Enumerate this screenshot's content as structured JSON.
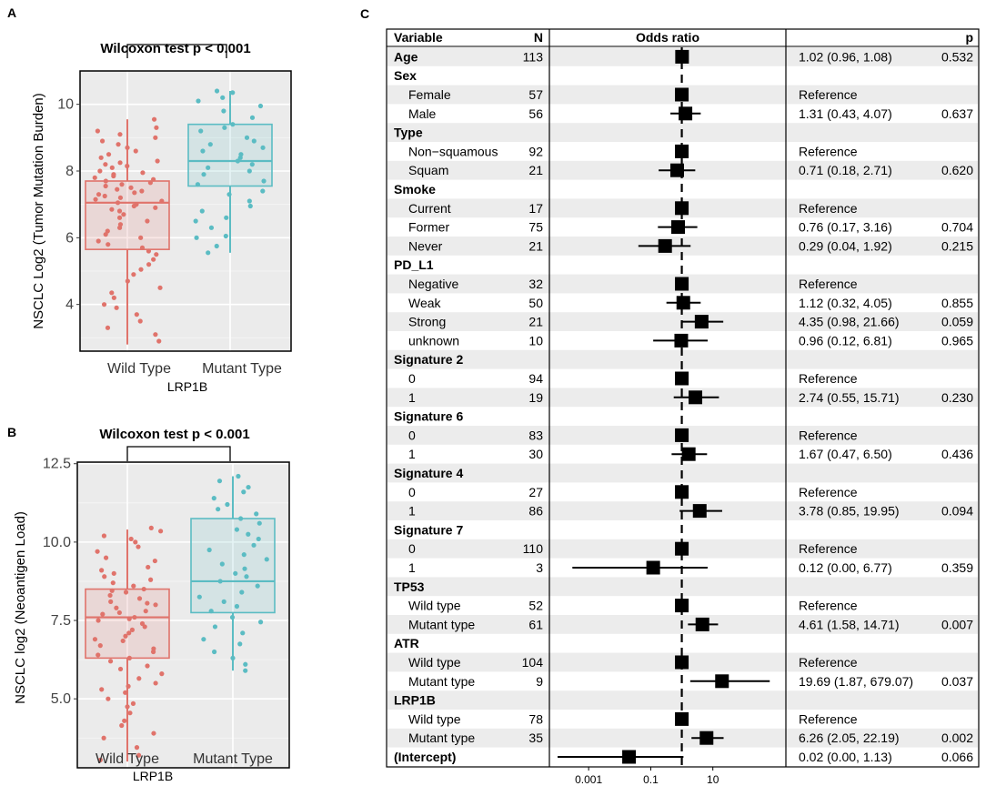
{
  "colors": {
    "wild": "#e0736b",
    "mutant": "#5bbcc3",
    "panel": "#ebebeb",
    "grid": "#ffffff",
    "stripe": "#ececec"
  },
  "panels": {
    "A": {
      "letter": "A",
      "test_label": "Wilcoxon test  p < 0.001",
      "ylabel": "NSCLC  Log2 (Tumor Mutation Burden)",
      "xlabel": "LRP1B",
      "categories": [
        "Wild Type",
        "Mutant Type"
      ],
      "y_ticks": [
        "4",
        "6",
        "8",
        "10"
      ]
    },
    "B": {
      "letter": "B",
      "test_label": "Wilcoxon test  p < 0.001",
      "ylabel": "NSCLC log2 (Neoantigen Load)",
      "xlabel": "LRP1B",
      "categories": [
        "Wild Type",
        "Mutant Type"
      ],
      "y_ticks": [
        "5.0",
        "7.5",
        "10.0",
        "12.5"
      ]
    },
    "C": {
      "letter": "C",
      "headers": {
        "variable": "Variable",
        "n": "N",
        "or": "Odds ratio",
        "p": "p"
      },
      "x_ticks": [
        "0.001",
        "0.1",
        "10"
      ]
    }
  },
  "chart_data": [
    {
      "type": "box",
      "title": "Wilcoxon test  p < 0.001",
      "xlabel": "LRP1B",
      "ylabel": "NSCLC  Log2 (Tumor Mutation Burden)",
      "ylim": [
        2.6,
        11.0
      ],
      "categories": [
        "Wild Type",
        "Mutant Type"
      ],
      "boxes": [
        {
          "name": "Wild Type",
          "min": 2.8,
          "q1": 5.65,
          "median": 7.05,
          "q3": 7.7,
          "max": 9.55
        },
        {
          "name": "Mutant Type",
          "min": 5.55,
          "q1": 7.55,
          "median": 8.3,
          "q3": 9.4,
          "max": 10.4
        }
      ],
      "points": [
        {
          "group": 0,
          "values": [
            9.55,
            9.3,
            9.2,
            9.1,
            9.0,
            8.9,
            8.8,
            8.7,
            8.6,
            8.5,
            8.4,
            8.3,
            8.25,
            8.2,
            8.15,
            8.1,
            8.0,
            7.95,
            7.9,
            7.85,
            7.8,
            7.75,
            7.7,
            7.65,
            7.6,
            7.55,
            7.5,
            7.45,
            7.4,
            7.35,
            7.3,
            7.25,
            7.2,
            7.15,
            7.1,
            7.05,
            7.0,
            6.95,
            6.9,
            6.85,
            6.8,
            6.7,
            6.6,
            6.5,
            6.4,
            6.3,
            6.2,
            6.1,
            6.0,
            5.9,
            5.8,
            5.7,
            5.6,
            5.5,
            5.35,
            5.2,
            5.05,
            4.9,
            4.7,
            4.5,
            4.35,
            4.2,
            4.0,
            3.9,
            3.7,
            3.5,
            3.3,
            3.1,
            2.9
          ]
        },
        {
          "group": 1,
          "values": [
            10.4,
            10.35,
            10.2,
            10.1,
            9.95,
            9.8,
            9.6,
            9.4,
            9.3,
            9.2,
            9.0,
            8.9,
            8.8,
            8.7,
            8.6,
            8.5,
            8.4,
            8.3,
            8.2,
            8.1,
            8.0,
            7.9,
            7.7,
            7.6,
            7.4,
            7.3,
            7.1,
            6.95,
            6.8,
            6.6,
            6.5,
            6.3,
            6.05,
            6.0,
            5.75,
            5.55
          ]
        }
      ]
    },
    {
      "type": "box",
      "title": "Wilcoxon test  p < 0.001",
      "xlabel": "LRP1B",
      "ylabel": "NSCLC log2 (Neoantigen Load)",
      "ylim": [
        2.8,
        12.55
      ],
      "categories": [
        "Wild Type",
        "Mutant Type"
      ],
      "boxes": [
        {
          "name": "Wild Type",
          "min": 3.0,
          "q1": 6.3,
          "median": 7.6,
          "q3": 8.5,
          "max": 10.4
        },
        {
          "name": "Mutant Type",
          "min": 5.9,
          "q1": 7.75,
          "median": 8.75,
          "q3": 10.75,
          "max": 12.1
        }
      ],
      "points": [
        {
          "group": 0,
          "values": [
            10.45,
            10.35,
            10.2,
            10.1,
            10.0,
            9.85,
            9.7,
            9.5,
            9.4,
            9.2,
            9.1,
            9.0,
            8.9,
            8.8,
            8.7,
            8.6,
            8.5,
            8.45,
            8.4,
            8.3,
            8.2,
            8.1,
            8.05,
            8.0,
            7.9,
            7.8,
            7.75,
            7.7,
            7.6,
            7.55,
            7.5,
            7.4,
            7.3,
            7.2,
            7.1,
            7.0,
            6.9,
            6.85,
            6.7,
            6.6,
            6.5,
            6.4,
            6.3,
            6.2,
            6.05,
            5.95,
            5.8,
            5.65,
            5.5,
            5.4,
            5.3,
            5.2,
            5.0,
            4.85,
            4.75,
            4.55,
            4.3,
            4.15,
            3.9,
            3.75,
            3.45,
            3.2,
            3.05
          ]
        },
        {
          "group": 1,
          "values": [
            12.1,
            11.95,
            11.75,
            11.6,
            11.4,
            11.2,
            11.05,
            10.9,
            10.75,
            10.6,
            10.4,
            10.25,
            10.1,
            9.9,
            9.75,
            9.6,
            9.45,
            9.3,
            9.15,
            9.0,
            8.9,
            8.75,
            8.6,
            8.4,
            8.25,
            8.1,
            7.95,
            7.8,
            7.6,
            7.45,
            7.3,
            7.1,
            6.9,
            6.75,
            6.5,
            6.3,
            6.1,
            5.9
          ]
        }
      ]
    },
    {
      "type": "forest",
      "title": "Odds ratio",
      "x_scale": "log10",
      "xlim": [
        0.0001,
        1500
      ],
      "reference_line": 1,
      "x_ticks": [
        0.001,
        0.1,
        10
      ],
      "rows": [
        {
          "label": "Age",
          "bold": true,
          "indent": false,
          "n": "113",
          "or": 1.02,
          "lo": 0.96,
          "hi": 1.08,
          "ci": "1.02 (0.96, 1.08)",
          "p": "0.532"
        },
        {
          "label": "Sex",
          "bold": true,
          "indent": false,
          "n": "",
          "or": null,
          "ci": "",
          "p": ""
        },
        {
          "label": "Female",
          "bold": false,
          "indent": true,
          "n": "57",
          "or": 1,
          "lo": null,
          "hi": null,
          "ci": "Reference",
          "p": ""
        },
        {
          "label": "Male",
          "bold": false,
          "indent": true,
          "n": "56",
          "or": 1.31,
          "lo": 0.43,
          "hi": 4.07,
          "ci": "1.31 (0.43, 4.07)",
          "p": "0.637"
        },
        {
          "label": "Type",
          "bold": true,
          "indent": false,
          "n": "",
          "or": null,
          "ci": "",
          "p": ""
        },
        {
          "label": "Non−squamous",
          "bold": false,
          "indent": true,
          "n": "92",
          "or": 1,
          "lo": null,
          "hi": null,
          "ci": "Reference",
          "p": ""
        },
        {
          "label": "Squam",
          "bold": false,
          "indent": true,
          "n": "21",
          "or": 0.71,
          "lo": 0.18,
          "hi": 2.71,
          "ci": "0.71 (0.18, 2.71)",
          "p": "0.620"
        },
        {
          "label": "Smoke",
          "bold": true,
          "indent": false,
          "n": "",
          "or": null,
          "ci": "",
          "p": ""
        },
        {
          "label": "Current",
          "bold": false,
          "indent": true,
          "n": "17",
          "or": 1,
          "lo": null,
          "hi": null,
          "ci": "Reference",
          "p": ""
        },
        {
          "label": "Former",
          "bold": false,
          "indent": true,
          "n": "75",
          "or": 0.76,
          "lo": 0.17,
          "hi": 3.16,
          "ci": "0.76 (0.17, 3.16)",
          "p": "0.704"
        },
        {
          "label": "Never",
          "bold": false,
          "indent": true,
          "n": "21",
          "or": 0.29,
          "lo": 0.04,
          "hi": 1.92,
          "ci": "0.29 (0.04, 1.92)",
          "p": "0.215"
        },
        {
          "label": "PD_L1",
          "bold": true,
          "indent": false,
          "n": "",
          "or": null,
          "ci": "",
          "p": ""
        },
        {
          "label": "Negative",
          "bold": false,
          "indent": true,
          "n": "32",
          "or": 1,
          "lo": null,
          "hi": null,
          "ci": "Reference",
          "p": ""
        },
        {
          "label": "Weak",
          "bold": false,
          "indent": true,
          "n": "50",
          "or": 1.12,
          "lo": 0.32,
          "hi": 4.05,
          "ci": "1.12 (0.32, 4.05)",
          "p": "0.855"
        },
        {
          "label": "Strong",
          "bold": false,
          "indent": true,
          "n": "21",
          "or": 4.35,
          "lo": 0.98,
          "hi": 21.66,
          "ci": "4.35 (0.98, 21.66)",
          "p": "0.059"
        },
        {
          "label": "unknown",
          "bold": false,
          "indent": true,
          "n": "10",
          "or": 0.96,
          "lo": 0.12,
          "hi": 6.81,
          "ci": "0.96 (0.12, 6.81)",
          "p": "0.965"
        },
        {
          "label": "Signature 2",
          "bold": true,
          "indent": false,
          "n": "",
          "or": null,
          "ci": "",
          "p": ""
        },
        {
          "label": "0",
          "bold": false,
          "indent": true,
          "n": "94",
          "or": 1,
          "lo": null,
          "hi": null,
          "ci": "Reference",
          "p": ""
        },
        {
          "label": "1",
          "bold": false,
          "indent": true,
          "n": "19",
          "or": 2.74,
          "lo": 0.55,
          "hi": 15.71,
          "ci": "2.74 (0.55, 15.71)",
          "p": "0.230"
        },
        {
          "label": "Signature 6",
          "bold": true,
          "indent": false,
          "n": "",
          "or": null,
          "ci": "",
          "p": ""
        },
        {
          "label": "0",
          "bold": false,
          "indent": true,
          "n": "83",
          "or": 1,
          "lo": null,
          "hi": null,
          "ci": "Reference",
          "p": ""
        },
        {
          "label": "1",
          "bold": false,
          "indent": true,
          "n": "30",
          "or": 1.67,
          "lo": 0.47,
          "hi": 6.5,
          "ci": "1.67 (0.47, 6.50)",
          "p": "0.436"
        },
        {
          "label": "Signature 4",
          "bold": true,
          "indent": false,
          "n": "",
          "or": null,
          "ci": "",
          "p": ""
        },
        {
          "label": "0",
          "bold": false,
          "indent": true,
          "n": "27",
          "or": 1,
          "lo": null,
          "hi": null,
          "ci": "Reference",
          "p": ""
        },
        {
          "label": "1",
          "bold": false,
          "indent": true,
          "n": "86",
          "or": 3.78,
          "lo": 0.85,
          "hi": 19.95,
          "ci": "3.78 (0.85, 19.95)",
          "p": "0.094"
        },
        {
          "label": "Signature 7",
          "bold": true,
          "indent": false,
          "n": "",
          "or": null,
          "ci": "",
          "p": ""
        },
        {
          "label": "0",
          "bold": false,
          "indent": true,
          "n": "110",
          "or": 1,
          "lo": null,
          "hi": null,
          "ci": "Reference",
          "p": ""
        },
        {
          "label": "1",
          "bold": false,
          "indent": true,
          "n": "3",
          "or": 0.12,
          "lo": 0.0003,
          "hi": 6.77,
          "ci": "0.12 (0.00, 6.77)",
          "p": "0.359"
        },
        {
          "label": "TP53",
          "bold": true,
          "indent": false,
          "n": "",
          "or": null,
          "ci": "",
          "p": ""
        },
        {
          "label": "Wild type",
          "bold": false,
          "indent": true,
          "n": "52",
          "or": 1,
          "lo": null,
          "hi": null,
          "ci": "Reference",
          "p": ""
        },
        {
          "label": "Mutant type",
          "bold": false,
          "indent": true,
          "n": "61",
          "or": 4.61,
          "lo": 1.58,
          "hi": 14.71,
          "ci": "4.61 (1.58, 14.71)",
          "p": "0.007"
        },
        {
          "label": "ATR",
          "bold": true,
          "indent": false,
          "n": "",
          "or": null,
          "ci": "",
          "p": ""
        },
        {
          "label": "Wild type",
          "bold": false,
          "indent": true,
          "n": "104",
          "or": 1,
          "lo": null,
          "hi": null,
          "ci": "Reference",
          "p": ""
        },
        {
          "label": "Mutant type",
          "bold": false,
          "indent": true,
          "n": "9",
          "or": 19.69,
          "lo": 1.87,
          "hi": 679.07,
          "ci": "19.69 (1.87, 679.07)",
          "p": "0.037"
        },
        {
          "label": "LRP1B",
          "bold": true,
          "indent": false,
          "n": "",
          "or": null,
          "ci": "",
          "p": ""
        },
        {
          "label": "Wild type",
          "bold": false,
          "indent": true,
          "n": "78",
          "or": 1,
          "lo": null,
          "hi": null,
          "ci": "Reference",
          "p": ""
        },
        {
          "label": "Mutant type",
          "bold": false,
          "indent": true,
          "n": "35",
          "or": 6.26,
          "lo": 2.05,
          "hi": 22.19,
          "ci": "6.26 (2.05, 22.19)",
          "p": "0.002"
        },
        {
          "label": "(Intercept)",
          "bold": true,
          "indent": false,
          "n": "",
          "or": 0.02,
          "lo": 0.0001,
          "hi": 1.13,
          "ci": "0.02 (0.00, 1.13)",
          "p": "0.066"
        }
      ]
    }
  ]
}
